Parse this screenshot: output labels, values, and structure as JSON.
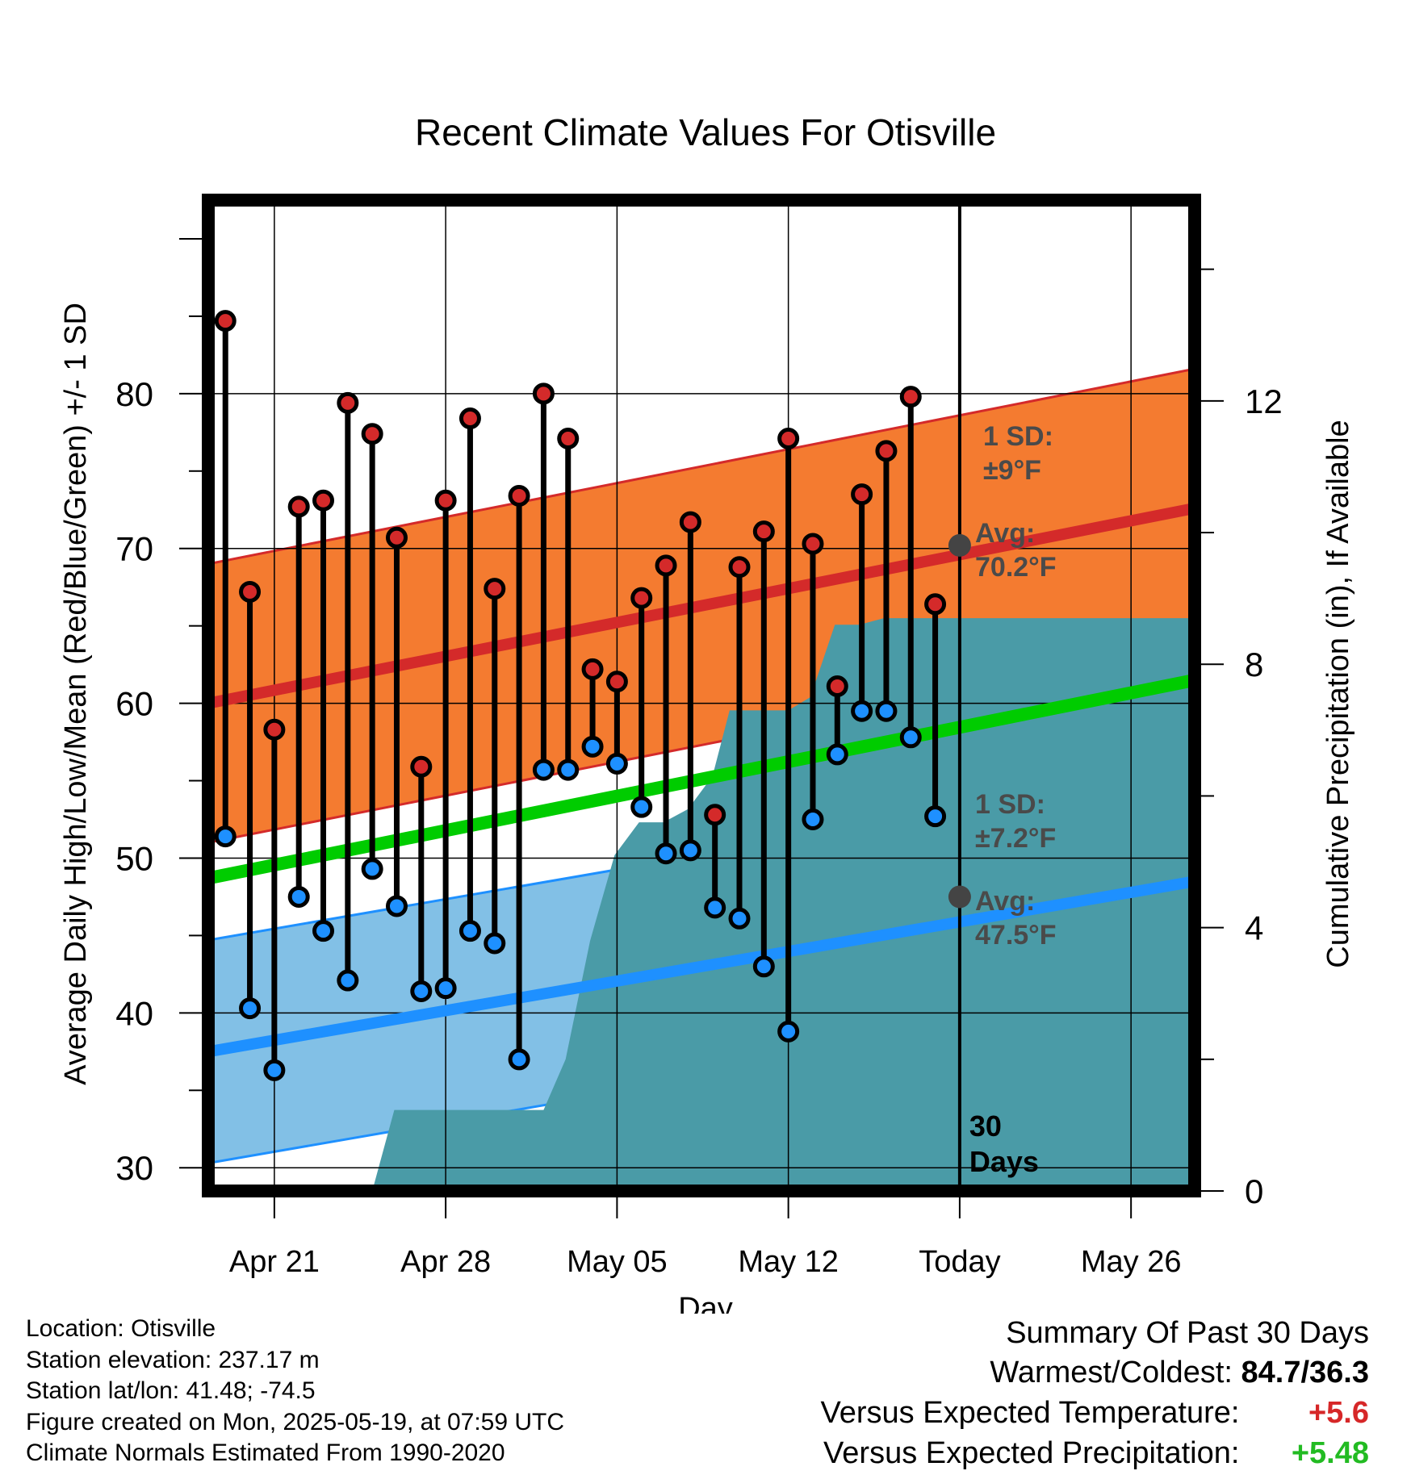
{
  "chart_data": {
    "type": "line",
    "title": "Recent Climate Values For Otisville",
    "xlabel": "Day",
    "ylabel_left": "Average Daily High/Low/Mean (Red/Blue/Green) +/- 1 SD",
    "ylabel_right": "Cumulative Precipitation (in), If Available",
    "y_ticks_left": [
      "30",
      "40",
      "50",
      "60",
      "70",
      "80"
    ],
    "y_ticks_right": [
      "0",
      "4",
      "8",
      "12"
    ],
    "x_ticks": [
      "Apr 21",
      "Apr 28",
      "May 05",
      "May 12",
      "Today",
      "May 26"
    ],
    "x_tick_days": [
      2,
      9,
      16,
      23,
      30,
      37
    ],
    "ylim_left": [
      28.5,
      92.5
    ],
    "ylim_right": [
      0,
      15.05
    ],
    "x_range_days": [
      -0.7,
      39.6
    ],
    "today_day": 30,
    "today_label": "30 Days",
    "grid": true,
    "normal_high": {
      "start": 60.0,
      "end": 72.6,
      "sd_label": "1 SD:",
      "sd_value": "±9°F",
      "sd": 9,
      "avg_label": "Avg:",
      "avg_value": "70.2°F",
      "today_avg": 70.2
    },
    "normal_low": {
      "start": 37.5,
      "end": 48.5,
      "sd_label": "1 SD:",
      "sd_value": "±7.2°F",
      "sd": 7.2,
      "avg_label": "Avg:",
      "avg_value": "47.5°F",
      "today_avg": 47.5
    },
    "normal_mean": {
      "start": 48.7,
      "end": 61.5
    },
    "daily": {
      "days": [
        0,
        1,
        2,
        3,
        4,
        5,
        6,
        7,
        8,
        9,
        10,
        11,
        12,
        13,
        14,
        15,
        16,
        17,
        18,
        19,
        20,
        21,
        22,
        23,
        24,
        25,
        26,
        27,
        28,
        29
      ],
      "highs": [
        84.7,
        67.2,
        58.3,
        72.7,
        73.1,
        79.4,
        77.4,
        70.7,
        55.9,
        73.1,
        78.4,
        67.4,
        73.4,
        80.0,
        77.1,
        62.2,
        61.4,
        66.8,
        68.9,
        71.7,
        52.8,
        68.8,
        71.1,
        77.1,
        70.3,
        61.1,
        73.5,
        76.3,
        79.8,
        66.4
      ],
      "lows": [
        51.4,
        40.3,
        36.3,
        47.5,
        45.3,
        42.1,
        49.3,
        46.9,
        41.4,
        41.6,
        45.3,
        44.5,
        37.0,
        55.7,
        55.7,
        57.2,
        56.1,
        53.3,
        50.3,
        50.5,
        46.8,
        46.1,
        43.0,
        38.8,
        52.5,
        56.7,
        59.5,
        59.5,
        57.8,
        52.7
      ]
    },
    "precip": {
      "x": [
        6.0,
        6.9,
        13.0,
        13.9,
        14.9,
        15.9,
        16.9,
        17.9,
        18.9,
        19.9,
        20.6,
        23.0,
        23.9,
        24.9,
        25.9,
        26.9,
        39.6
      ],
      "y": [
        0,
        1.23,
        1.23,
        2.0,
        3.8,
        5.1,
        5.6,
        5.6,
        5.8,
        6.3,
        7.3,
        7.3,
        7.5,
        8.6,
        8.6,
        8.7,
        8.7
      ]
    }
  },
  "footer": {
    "location": "Location: Otisville",
    "elevation": "Station elevation: 237.17 m",
    "latlon": "Station lat/lon: 41.48; -74.5",
    "created": "Figure created on Mon, 2025-05-19, at 07:59 UTC",
    "normals": "Climate Normals Estimated From 1990-2020"
  },
  "summary": {
    "title": "Summary Of Past 30 Days",
    "warm_cold_label": "Warmest/Coldest:",
    "warm_cold_value": "84.7/36.3",
    "temp_label": "Versus Expected Temperature:",
    "temp_value": "+5.6",
    "temp_color": "#d62728",
    "precip_label": "Versus Expected Precipitation:",
    "precip_value": "+5.48",
    "precip_color": "#22bb22"
  },
  "colors": {
    "high_band": "#f47b30",
    "high_line": "#d42a2a",
    "low_band": "#82c0e6",
    "low_line": "#1e90ff",
    "mean_line": "#00cc00",
    "precip_fill": "#4a9ba7",
    "high_dot": "#d42a2a",
    "low_dot": "#1e90ff",
    "today_dot": "#444444"
  }
}
